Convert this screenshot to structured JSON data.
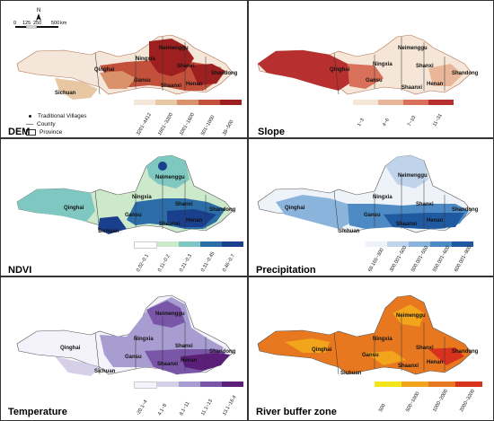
{
  "north_label": "N",
  "scale": {
    "ticks": [
      "0",
      "125",
      "250",
      "500"
    ],
    "unit": "km"
  },
  "province_labels": [
    "Qinghai",
    "Neimenggu",
    "Ningxia",
    "Gansu",
    "Shanxi",
    "Shaanxi",
    "Henan",
    "Shandong",
    "Sichuan"
  ],
  "village_legend": {
    "villages": "Traditional Villages",
    "county": "County",
    "province": "Province"
  },
  "panels": [
    {
      "title": "DEM",
      "legend": [
        "3201~4412",
        "1601~3200",
        "1001~1600",
        "501~1000",
        "38~500"
      ],
      "colors": [
        "#f4e6d8",
        "#e8c7a3",
        "#d9926a",
        "#c2503a",
        "#9e1f1f"
      ]
    },
    {
      "title": "Slope",
      "legend": [
        "1~3",
        "4~6",
        "7~10",
        "11~31"
      ],
      "colors": [
        "#f6e6d8",
        "#eab69a",
        "#d9705a",
        "#b82f2f"
      ]
    },
    {
      "title": "NDVI",
      "legend": [
        "0.02~0.1",
        "0.11~0.2",
        "0.21~0.3",
        "0.31~0.45",
        "0.46~0.7"
      ],
      "colors": [
        "#ffffff",
        "#cde9cc",
        "#7fc8c2",
        "#2c6da8",
        "#1a3f8c"
      ]
    },
    {
      "title": "Precipitation",
      "legend": [
        "68.165~300",
        "300.001~500",
        "500.001~550",
        "550.001~600",
        "600.001~900"
      ],
      "colors": [
        "#eef2f9",
        "#bfd3ea",
        "#8bb4dc",
        "#4e8ac4",
        "#1f5aa0"
      ]
    },
    {
      "title": "Temperature",
      "legend": [
        "-20.1~4",
        "4.1~8",
        "8.1~11",
        "11.1~13",
        "13.1~16.4"
      ],
      "colors": [
        "#f4f2fa",
        "#d6cfe8",
        "#a89dd0",
        "#7a56a8",
        "#5b1f7a"
      ]
    },
    {
      "title": "River buffer zone",
      "legend": [
        "500",
        "500~1000",
        "1000~2000",
        "2000~3200"
      ],
      "colors": [
        "#f2e61a",
        "#f2a41a",
        "#e8781f",
        "#d8321f"
      ]
    }
  ]
}
